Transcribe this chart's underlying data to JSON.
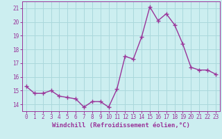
{
  "x": [
    0,
    1,
    2,
    3,
    4,
    5,
    6,
    7,
    8,
    9,
    10,
    11,
    12,
    13,
    14,
    15,
    16,
    17,
    18,
    19,
    20,
    21,
    22,
    23
  ],
  "y": [
    15.3,
    14.8,
    14.8,
    15.0,
    14.6,
    14.5,
    14.4,
    13.8,
    14.2,
    14.2,
    13.8,
    15.1,
    17.5,
    17.3,
    18.9,
    21.1,
    20.1,
    20.6,
    19.8,
    18.4,
    16.7,
    16.5,
    16.5,
    16.2
  ],
  "line_color": "#993399",
  "marker": "+",
  "marker_size": 4,
  "marker_linewidth": 1.0,
  "xlabel": "Windchill (Refroidissement éolien,°C)",
  "xlabel_fontsize": 6.5,
  "ytick_values": [
    14,
    15,
    16,
    17,
    18,
    19,
    20,
    21
  ],
  "xtick_labels": [
    "0",
    "1",
    "2",
    "3",
    "4",
    "5",
    "6",
    "7",
    "8",
    "9",
    "10",
    "11",
    "12",
    "13",
    "14",
    "15",
    "16",
    "17",
    "18",
    "19",
    "20",
    "21",
    "22",
    "23"
  ],
  "ylim": [
    13.5,
    21.5
  ],
  "xlim": [
    -0.5,
    23.5
  ],
  "background_color": "#cceef0",
  "grid_color": "#aad8dc",
  "tick_fontsize": 5.5,
  "line_width": 1.0
}
